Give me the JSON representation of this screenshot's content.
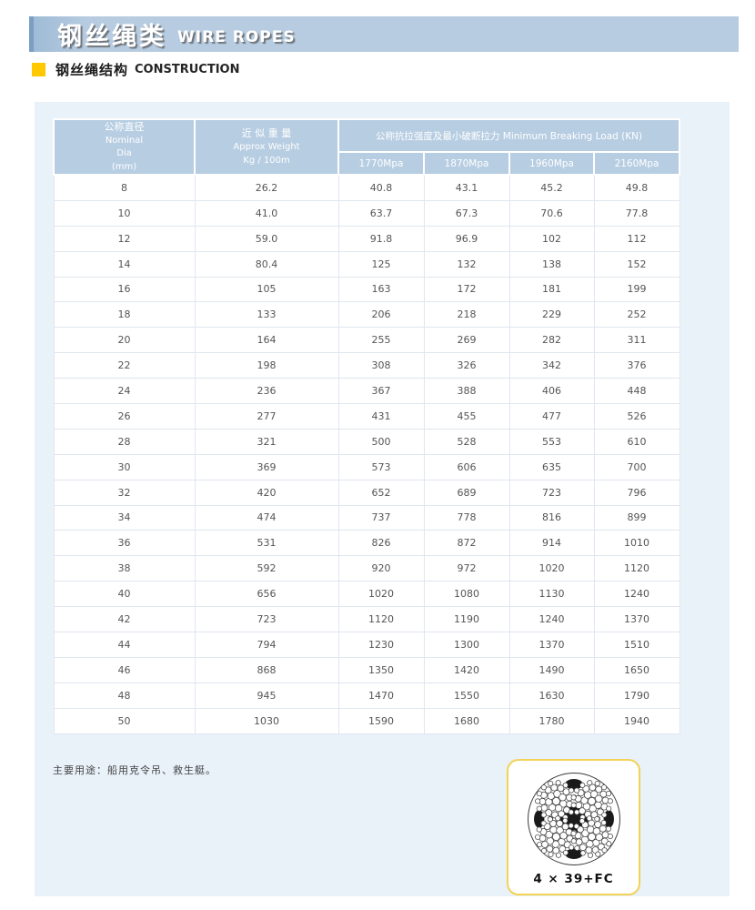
{
  "header": {
    "title_zh": "钢丝绳类",
    "title_en": "WIRE ROPES",
    "bar_color": "#b7cce0",
    "accent_color": "#7b9fc3"
  },
  "section": {
    "bullet_color": "#ffc800",
    "title_zh": "钢丝绳结构",
    "title_en": "CONSTRUCTION"
  },
  "table": {
    "col1": {
      "l1": "公称直径",
      "l2": "Nominal",
      "l3": "Dia",
      "l4": "(mm)"
    },
    "col2": {
      "l1": "近 似 重 量",
      "l2": "Approx Weight",
      "l3": "Kg / 100m"
    },
    "group_header": "公称抗拉强度及最小破断拉力 Minimum Breaking Load (KN)",
    "subcolumns": [
      "1770Mpa",
      "1870Mpa",
      "1960Mpa",
      "2160Mpa"
    ],
    "rows": [
      [
        "8",
        "26.2",
        "40.8",
        "43.1",
        "45.2",
        "49.8"
      ],
      [
        "10",
        "41.0",
        "63.7",
        "67.3",
        "70.6",
        "77.8"
      ],
      [
        "12",
        "59.0",
        "91.8",
        "96.9",
        "102",
        "112"
      ],
      [
        "14",
        "80.4",
        "125",
        "132",
        "138",
        "152"
      ],
      [
        "16",
        "105",
        "163",
        "172",
        "181",
        "199"
      ],
      [
        "18",
        "133",
        "206",
        "218",
        "229",
        "252"
      ],
      [
        "20",
        "164",
        "255",
        "269",
        "282",
        "311"
      ],
      [
        "22",
        "198",
        "308",
        "326",
        "342",
        "376"
      ],
      [
        "24",
        "236",
        "367",
        "388",
        "406",
        "448"
      ],
      [
        "26",
        "277",
        "431",
        "455",
        "477",
        "526"
      ],
      [
        "28",
        "321",
        "500",
        "528",
        "553",
        "610"
      ],
      [
        "30",
        "369",
        "573",
        "606",
        "635",
        "700"
      ],
      [
        "32",
        "420",
        "652",
        "689",
        "723",
        "796"
      ],
      [
        "34",
        "474",
        "737",
        "778",
        "816",
        "899"
      ],
      [
        "36",
        "531",
        "826",
        "872",
        "914",
        "1010"
      ],
      [
        "38",
        "592",
        "920",
        "972",
        "1020",
        "1120"
      ],
      [
        "40",
        "656",
        "1020",
        "1080",
        "1130",
        "1240"
      ],
      [
        "42",
        "723",
        "1120",
        "1190",
        "1240",
        "1370"
      ],
      [
        "44",
        "794",
        "1230",
        "1300",
        "1370",
        "1510"
      ],
      [
        "46",
        "868",
        "1350",
        "1420",
        "1490",
        "1650"
      ],
      [
        "48",
        "945",
        "1470",
        "1550",
        "1630",
        "1790"
      ],
      [
        "50",
        "1030",
        "1590",
        "1680",
        "1780",
        "1940"
      ]
    ]
  },
  "note": "主要用途：船用克令吊、救生艇。",
  "diagram": {
    "label": "4 × 39+FC",
    "border_color": "#f2d257"
  }
}
